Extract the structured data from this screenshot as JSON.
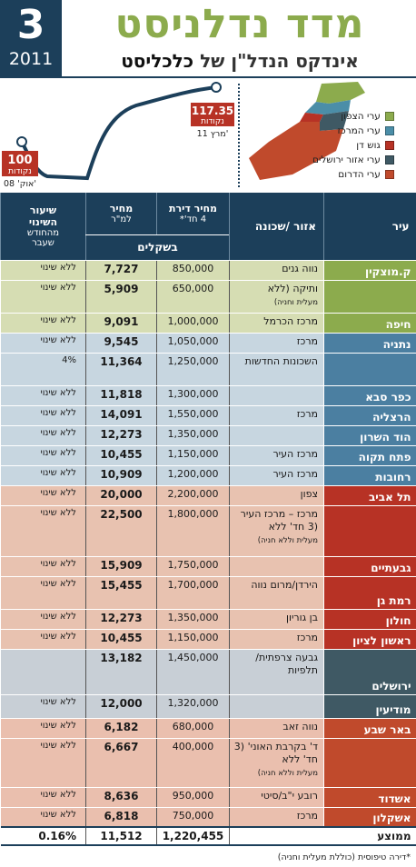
{
  "header": {
    "issue": "3",
    "year": "2011",
    "title": "מדד נדלניסט",
    "subtitle_prefix": "אינדקס הנדל\"ן של",
    "subtitle_brand": "כלכליסט"
  },
  "index_chart": {
    "start_value": "100",
    "start_unit": "נקודות",
    "start_date": "אוק' 08'",
    "end_value": "117.35",
    "end_unit": "נקודות",
    "end_date": "מרץ 11'"
  },
  "map_legend": [
    {
      "label": "ערי הצפון",
      "color": "#8cab4d"
    },
    {
      "label": "ערי המרכז",
      "color": "#4b8ea8"
    },
    {
      "label": "גוש דן",
      "color": "#b73225"
    },
    {
      "label": "ערי אזור ירושלים",
      "color": "#3f5964"
    },
    {
      "label": "ערי הדרום",
      "color": "#c04a2c"
    }
  ],
  "chart_data": {
    "type": "table",
    "columns": {
      "city": "עיר",
      "area": "אזור /שכונה",
      "price_line1": "מחיר דירת",
      "price_line2": "4 חד'*",
      "sqm_line1": "מחיר",
      "sqm_line2": "למ\"ר",
      "change_line1": "שיעור",
      "change_line2": "השינוי",
      "change_line3": "מהחודש",
      "change_line4": "שעבר",
      "currency": "בשקלים"
    },
    "rows": [
      {
        "cls": "g",
        "city": "ק.מוצקין",
        "area": "נווה גנים",
        "price": "850,000",
        "sqm": "7,727",
        "change": "ללא שינוי"
      },
      {
        "cls": "g",
        "city": "",
        "area": "ותיקה (ללא",
        "area_small": "מעלית וחניה)",
        "price": "650,000",
        "sqm": "5,909",
        "change": "ללא שינוי"
      },
      {
        "cls": "g",
        "city": "חיפה",
        "area": "מרכז הכרמל",
        "price": "1,000,000",
        "sqm": "9,091",
        "change": "ללא שינוי"
      },
      {
        "cls": "b",
        "city": "נתניה",
        "area": "מרכז",
        "price": "1,050,000",
        "sqm": "9,545",
        "change": "ללא שינוי"
      },
      {
        "cls": "b",
        "city": "",
        "area": "השכונות החדשות",
        "price": "1,250,000",
        "sqm": "11,364",
        "change": "4%"
      },
      {
        "cls": "b",
        "city": "כפר סבא",
        "area": "",
        "price": "1,300,000",
        "sqm": "11,818",
        "change": "ללא שינוי"
      },
      {
        "cls": "b",
        "city": "הרצליה",
        "area": "מרכז",
        "price": "1,550,000",
        "sqm": "14,091",
        "change": "ללא שינוי"
      },
      {
        "cls": "b",
        "city": "הוד השרון",
        "area": "",
        "price": "1,350,000",
        "sqm": "12,273",
        "change": "ללא שינוי"
      },
      {
        "cls": "b",
        "city": "פתח תקוה",
        "area": "מרכז העיר",
        "price": "1,150,000",
        "sqm": "10,455",
        "change": "ללא שינוי"
      },
      {
        "cls": "b",
        "city": "רחובות",
        "area": "מרכז העיר",
        "price": "1,200,000",
        "sqm": "10,909",
        "change": "ללא שינוי"
      },
      {
        "cls": "r",
        "city": "תל אביב",
        "area": "צפון",
        "price": "2,200,000",
        "sqm": "20,000",
        "change": "ללא שינוי"
      },
      {
        "cls": "r",
        "city": "",
        "area": "מרכז – מרכז העיר (3 חד' ללא",
        "area_small": "מעלית וללא חניה)",
        "price": "1,800,000",
        "sqm": "22,500",
        "change": "ללא שינוי"
      },
      {
        "cls": "r",
        "city": "גבעתיים",
        "area": "",
        "price": "1,750,000",
        "sqm": "15,909",
        "change": "ללא שינוי"
      },
      {
        "cls": "r",
        "city": "רמת גן",
        "area": "הירדן/מרום נווה",
        "price": "1,700,000",
        "sqm": "15,455",
        "change": "ללא שינוי"
      },
      {
        "cls": "r",
        "city": "חולון",
        "area": "בן גוריון",
        "price": "1,350,000",
        "sqm": "12,273",
        "change": "ללא שינוי"
      },
      {
        "cls": "r",
        "city": "ראשון לציון",
        "area": "מרכז",
        "price": "1,150,000",
        "sqm": "10,455",
        "change": "ללא שינוי"
      },
      {
        "cls": "j",
        "city": "ירושלים",
        "area": "גבעה צרפתית/ תלפיות",
        "price": "1,450,000",
        "sqm": "13,182",
        "change": ""
      },
      {
        "cls": "j",
        "city": "מודיעין",
        "area": "",
        "price": "1,320,000",
        "sqm": "12,000",
        "change": "ללא שינוי"
      },
      {
        "cls": "s",
        "city": "באר שבע",
        "area": "נווה זאב",
        "price": "680,000",
        "sqm": "6,182",
        "change": "ללא שינוי"
      },
      {
        "cls": "s",
        "city": "",
        "area": "ד' בקרבת האוני' (3 חד' ללא",
        "area_small": "מעלית וללא חניה)",
        "price": "400,000",
        "sqm": "6,667",
        "change": "ללא שינוי"
      },
      {
        "cls": "s",
        "city": "אשדוד",
        "area": "רובע י\"ב/סיטי",
        "price": "950,000",
        "sqm": "8,636",
        "change": "ללא שינוי"
      },
      {
        "cls": "s",
        "city": "אשקלון",
        "area": "מרכז",
        "price": "750,000",
        "sqm": "6,818",
        "change": "ללא שינוי"
      }
    ],
    "total": {
      "city": "ממוצע",
      "price": "1,220,455",
      "sqm": "11,512",
      "change": "0.16%"
    }
  },
  "footnote": "*דירה טיפוסית (כוללת מעלית וחניה)"
}
